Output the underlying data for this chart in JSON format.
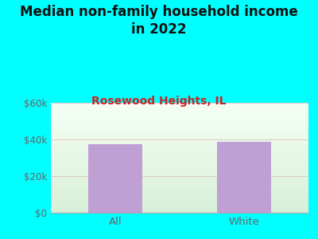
{
  "title": "Median non-family household income\nin 2022",
  "subtitle": "Rosewood Heights, IL",
  "categories": [
    "All",
    "White"
  ],
  "values": [
    37500,
    38500
  ],
  "bar_color": "#bf9fd4",
  "title_fontsize": 12,
  "subtitle_fontsize": 10,
  "subtitle_color": "#cc2222",
  "title_color": "#111111",
  "tick_color": "#666666",
  "background_outer": "#00ffff",
  "ylim": [
    0,
    60000
  ],
  "yticks": [
    0,
    20000,
    40000,
    60000
  ],
  "ytick_labels": [
    "$0",
    "$20k",
    "$40k",
    "$60k"
  ],
  "grid_color": "#ddc8c8",
  "plot_bg_color": "#eaf5ea"
}
